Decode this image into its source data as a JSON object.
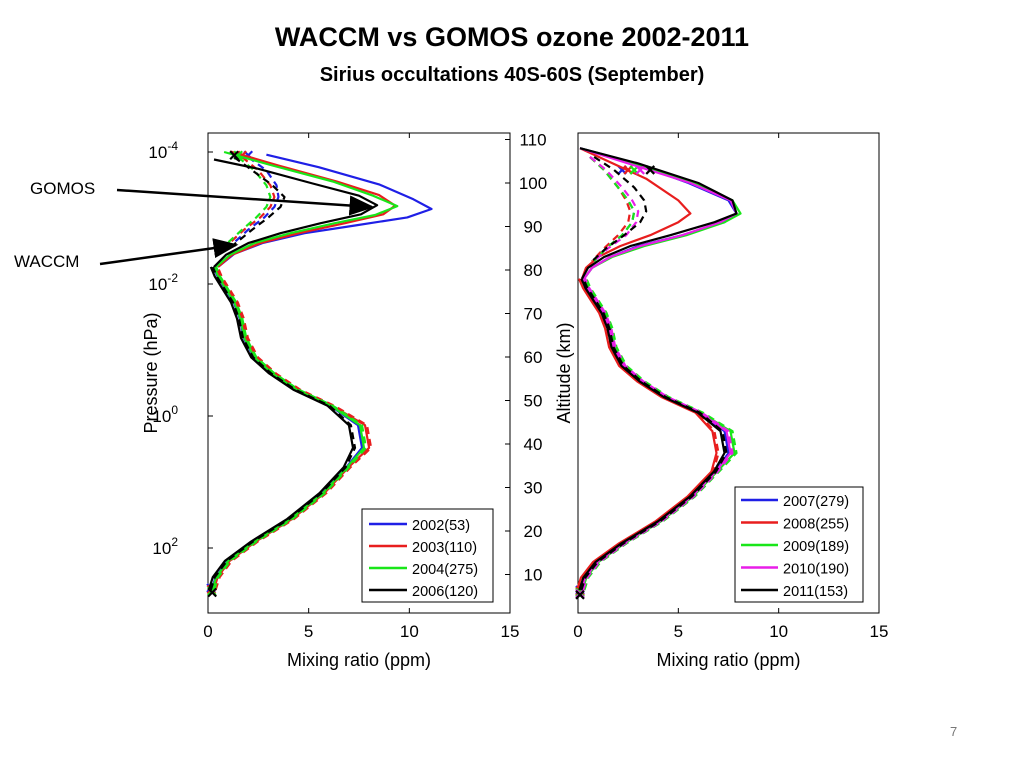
{
  "title": "WACCM vs GOMOS ozone 2002-2011",
  "subtitle": "Sirius occultations 40S-60S (September)",
  "page_number": "7",
  "annotations": {
    "gomos": "GOMOS",
    "waccm": "WACCM"
  },
  "chart_data": [
    {
      "type": "line",
      "panel": "left",
      "xlabel": "Mixing ratio (ppm)",
      "ylabel": "Pressure (hPa)",
      "xlim": [
        0,
        15
      ],
      "xticks": [
        "0",
        "5",
        "10",
        "15"
      ],
      "y_scale": "log",
      "y_ticks": [
        {
          "base": "10",
          "exp": "-4",
          "value": 0.0001
        },
        {
          "base": "10",
          "exp": "-2",
          "value": 0.01
        },
        {
          "base": "10",
          "exp": "0",
          "value": 1
        },
        {
          "base": "10",
          "exp": "2",
          "value": 100
        }
      ],
      "legend_position": "bottom-right",
      "grid": false,
      "series": [
        {
          "name": "2002(53)",
          "color": "#1f1fe6",
          "gomos": {
            "x": [
              2.9,
              5.5,
              8.5,
              10.2,
              11.1,
              9.9,
              7.3,
              4.8,
              2.7,
              1.3,
              0.5
            ],
            "y": [
              0.00011,
              0.00017,
              0.00031,
              0.00052,
              0.00073,
              0.00098,
              0.0013,
              0.0017,
              0.0024,
              0.0035,
              0.0055
            ]
          },
          "waccm": {
            "x": [
              2.0,
              2.9,
              3.4,
              3.5,
              3.3,
              2.8,
              2.0,
              1.2
            ],
            "y": [
              0.00012,
              0.00019,
              0.00032,
              0.00048,
              0.00068,
              0.00098,
              0.0015,
              0.0025
            ]
          }
        },
        {
          "name": "2003(110)",
          "color": "#e81e1e",
          "gomos": {
            "x": [
              1.1,
              3.5,
              6.4,
              8.5,
              9.3,
              8.7,
              6.8,
              4.5,
              2.6,
              1.2,
              0.5
            ],
            "y": [
              9.8e-05,
              0.00016,
              0.00028,
              0.00045,
              0.00065,
              0.00088,
              0.0012,
              0.0017,
              0.0024,
              0.0036,
              0.0055
            ]
          },
          "waccm": {
            "x": [
              1.7,
              2.5,
              3.1,
              3.3,
              3.1,
              2.6,
              1.8,
              1.0
            ],
            "y": [
              0.00012,
              0.00019,
              0.00032,
              0.00048,
              0.00068,
              0.00098,
              0.0015,
              0.0025
            ]
          }
        },
        {
          "name": "2004(275)",
          "color": "#19e619",
          "gomos": {
            "x": [
              0.8,
              3.2,
              6.2,
              8.2,
              9.4,
              8.3,
              6.3,
              4.1,
              2.3,
              1.1,
              0.4
            ],
            "y": [
              0.0001,
              0.00016,
              0.00028,
              0.00046,
              0.00066,
              0.0009,
              0.0012,
              0.0017,
              0.0024,
              0.0036,
              0.0055
            ]
          },
          "waccm": {
            "x": [
              1.5,
              2.3,
              2.9,
              3.1,
              2.9,
              2.4,
              1.7,
              0.9
            ],
            "y": [
              0.00012,
              0.00019,
              0.00032,
              0.00048,
              0.00068,
              0.00098,
              0.0015,
              0.0025
            ]
          }
        },
        {
          "name": "2006(120)",
          "color": "#000000",
          "gomos": {
            "x": [
              0.3,
              2.5,
              5.2,
              7.5,
              8.4,
              7.6,
              5.6,
              3.6,
              2.0,
              0.9,
              0.3
            ],
            "y": [
              0.00013,
              0.00018,
              0.0003,
              0.00046,
              0.00064,
              0.00088,
              0.0012,
              0.0017,
              0.0024,
              0.0036,
              0.0055
            ]
          },
          "waccm": {
            "x": [
              1.3,
              2.2,
              3.2,
              3.8,
              3.6,
              3.0,
              2.2,
              1.3
            ],
            "y": [
              0.00012,
              0.00019,
              0.00032,
              0.00048,
              0.00068,
              0.00098,
              0.0015,
              0.0025
            ]
          }
        }
      ]
    },
    {
      "type": "line",
      "panel": "right",
      "xlabel": "Mixing ratio (ppm)",
      "ylabel": "Altitude (km)",
      "xlim": [
        0,
        15
      ],
      "xticks": [
        "0",
        "5",
        "10",
        "15"
      ],
      "ylim": [
        3,
        111
      ],
      "yticks": [
        "10",
        "20",
        "30",
        "40",
        "50",
        "60",
        "70",
        "80",
        "90",
        "100",
        "110"
      ],
      "legend_position": "bottom-right",
      "grid": false,
      "series": [
        {
          "name": "2007(279)",
          "color": "#1f1fe6",
          "gomos": {
            "x": [
              0.1,
              2.5,
              5.5,
              7.5,
              7.9,
              7.3,
              5.2,
              3.0,
              1.6,
              0.7,
              0.3
            ],
            "y": [
              108,
              105,
              100,
              96,
              93,
              91,
              88,
              85.5,
              83,
              80.5,
              78
            ]
          },
          "waccm": {
            "x": [
              0.6,
              1.3,
              2.0,
              2.5,
              2.8,
              2.7,
              2.2,
              1.4,
              0.8
            ],
            "y": [
              106,
              103,
              99,
              96,
              93.5,
              91,
              88,
              85,
              82
            ]
          }
        },
        {
          "name": "2008(255)",
          "color": "#e81e1e",
          "gomos": {
            "x": [
              0.1,
              1.5,
              3.4,
              5.0,
              5.6,
              5.0,
              3.6,
              2.1,
              1.0,
              0.4,
              0.2
            ],
            "y": [
              108,
              105,
              101,
              96,
              93,
              91,
              88,
              85.5,
              83,
              80.5,
              78
            ]
          },
          "waccm": {
            "x": [
              0.6,
              1.3,
              2.0,
              2.4,
              2.6,
              2.5,
              2.0,
              1.3,
              0.7
            ],
            "y": [
              106,
              103,
              99,
              96,
              93.5,
              91,
              88,
              85,
              82
            ]
          }
        },
        {
          "name": "2009(189)",
          "color": "#19e619",
          "gomos": {
            "x": [
              0.1,
              2.7,
              5.8,
              7.7,
              8.1,
              7.3,
              5.4,
              3.3,
              1.7,
              0.7,
              0.3
            ],
            "y": [
              108,
              104.5,
              100,
              96,
              93,
              91,
              88,
              85.5,
              83,
              80.5,
              78
            ]
          },
          "waccm": {
            "x": [
              0.6,
              1.3,
              2.0,
              2.5,
              2.8,
              2.7,
              2.2,
              1.4,
              0.8
            ],
            "y": [
              106,
              103,
              99,
              96,
              93.5,
              91,
              88,
              85,
              82
            ]
          }
        },
        {
          "name": "2010(190)",
          "color": "#e81ee8",
          "gomos": {
            "x": [
              0.1,
              2.5,
              5.6,
              7.6,
              7.9,
              7.1,
              5.2,
              3.1,
              1.6,
              0.7,
              0.3
            ],
            "y": [
              108,
              104.5,
              100,
              96,
              93,
              91,
              88,
              85.5,
              83,
              80.5,
              78
            ]
          },
          "waccm": {
            "x": [
              0.6,
              1.4,
              2.2,
              2.7,
              3.0,
              2.9,
              2.4,
              1.5,
              0.8
            ],
            "y": [
              106,
              103,
              99,
              96,
              93.5,
              91,
              88,
              85,
              82
            ]
          }
        },
        {
          "name": "2011(153)",
          "color": "#000000",
          "gomos": {
            "x": [
              0.1,
              3.0,
              6.0,
              7.7,
              7.9,
              6.8,
              4.6,
              2.6,
              1.3,
              0.5,
              0.2
            ],
            "y": [
              108,
              104.5,
              100,
              96,
              93,
              91,
              88,
              85.5,
              83,
              80.5,
              78
            ]
          },
          "waccm": {
            "x": [
              0.8,
              1.8,
              2.8,
              3.3,
              3.4,
              3.1,
              2.3,
              1.4,
              0.7
            ],
            "y": [
              106,
              103,
              99,
              96,
              93.5,
              91,
              88,
              85,
              82
            ]
          }
        }
      ]
    }
  ]
}
